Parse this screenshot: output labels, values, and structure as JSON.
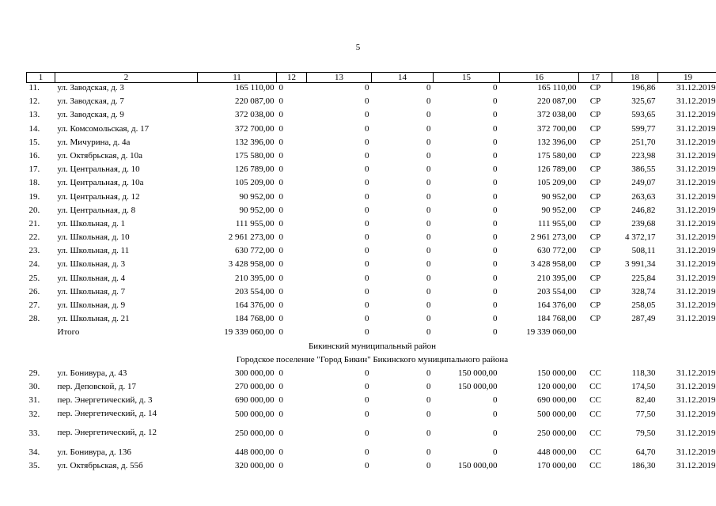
{
  "page_number": "5",
  "header": [
    "1",
    "2",
    "11",
    "12",
    "13",
    "14",
    "15",
    "16",
    "17",
    "18",
    "19"
  ],
  "rows_a": [
    {
      "n": "11.",
      "addr": "ул. Заводская, д. 3",
      "c11": "165 110,00",
      "c12": "0",
      "c13": "0",
      "c14": "0",
      "c15": "0",
      "c16": "165 110,00",
      "c17": "СР",
      "c18": "196,86",
      "c19": "31.12.2019"
    },
    {
      "n": "12.",
      "addr": "ул. Заводская, д. 7",
      "c11": "220 087,00",
      "c12": "0",
      "c13": "0",
      "c14": "0",
      "c15": "0",
      "c16": "220 087,00",
      "c17": "СР",
      "c18": "325,67",
      "c19": "31.12.2019"
    },
    {
      "n": "13.",
      "addr": "ул. Заводская, д. 9",
      "c11": "372 038,00",
      "c12": "0",
      "c13": "0",
      "c14": "0",
      "c15": "0",
      "c16": "372 038,00",
      "c17": "СР",
      "c18": "593,65",
      "c19": "31.12.2019"
    },
    {
      "n": "14.",
      "addr": "ул. Комсомольская, д. 17",
      "c11": "372 700,00",
      "c12": "0",
      "c13": "0",
      "c14": "0",
      "c15": "0",
      "c16": "372 700,00",
      "c17": "СР",
      "c18": "599,77",
      "c19": "31.12.2019"
    },
    {
      "n": "15.",
      "addr": "ул. Мичурина, д. 4а",
      "c11": "132 396,00",
      "c12": "0",
      "c13": "0",
      "c14": "0",
      "c15": "0",
      "c16": "132 396,00",
      "c17": "СР",
      "c18": "251,70",
      "c19": "31.12.2019"
    },
    {
      "n": "16.",
      "addr": "ул. Октябрьская, д. 10а",
      "c11": "175 580,00",
      "c12": "0",
      "c13": "0",
      "c14": "0",
      "c15": "0",
      "c16": "175 580,00",
      "c17": "СР",
      "c18": "223,98",
      "c19": "31.12.2019"
    },
    {
      "n": "17.",
      "addr": "ул. Центральная, д. 10",
      "c11": "126 789,00",
      "c12": "0",
      "c13": "0",
      "c14": "0",
      "c15": "0",
      "c16": "126 789,00",
      "c17": "СР",
      "c18": "386,55",
      "c19": "31.12.2019"
    },
    {
      "n": "18.",
      "addr": "ул. Центральная, д. 10а",
      "c11": "105 209,00",
      "c12": "0",
      "c13": "0",
      "c14": "0",
      "c15": "0",
      "c16": "105 209,00",
      "c17": "СР",
      "c18": "249,07",
      "c19": "31.12.2019"
    },
    {
      "n": "19.",
      "addr": "ул. Центральная, д. 12",
      "c11": "90 952,00",
      "c12": "0",
      "c13": "0",
      "c14": "0",
      "c15": "0",
      "c16": "90 952,00",
      "c17": "СР",
      "c18": "263,63",
      "c19": "31.12.2019"
    },
    {
      "n": "20.",
      "addr": "ул. Центральная, д. 8",
      "c11": "90 952,00",
      "c12": "0",
      "c13": "0",
      "c14": "0",
      "c15": "0",
      "c16": "90 952,00",
      "c17": "СР",
      "c18": "246,82",
      "c19": "31.12.2019"
    },
    {
      "n": "21.",
      "addr": "ул. Школьная, д. 1",
      "c11": "111 955,00",
      "c12": "0",
      "c13": "0",
      "c14": "0",
      "c15": "0",
      "c16": "111 955,00",
      "c17": "СР",
      "c18": "239,68",
      "c19": "31.12.2019"
    },
    {
      "n": "22.",
      "addr": "ул. Школьная, д. 10",
      "c11": "2 961 273,00",
      "c12": "0",
      "c13": "0",
      "c14": "0",
      "c15": "0",
      "c16": "2 961 273,00",
      "c17": "СР",
      "c18": "4 372,17",
      "c19": "31.12.2019"
    },
    {
      "n": "23.",
      "addr": "ул. Школьная, д. 11",
      "c11": "630 772,00",
      "c12": "0",
      "c13": "0",
      "c14": "0",
      "c15": "0",
      "c16": "630 772,00",
      "c17": "СР",
      "c18": "508,11",
      "c19": "31.12.2019"
    },
    {
      "n": "24.",
      "addr": "ул. Школьная, д. 3",
      "c11": "3 428 958,00",
      "c12": "0",
      "c13": "0",
      "c14": "0",
      "c15": "0",
      "c16": "3 428 958,00",
      "c17": "СР",
      "c18": "3 991,34",
      "c19": "31.12.2019"
    },
    {
      "n": "25.",
      "addr": "ул. Школьная, д. 4",
      "c11": "210 395,00",
      "c12": "0",
      "c13": "0",
      "c14": "0",
      "c15": "0",
      "c16": "210 395,00",
      "c17": "СР",
      "c18": "225,84",
      "c19": "31.12.2019"
    },
    {
      "n": "26.",
      "addr": "ул. Школьная, д. 7",
      "c11": "203 554,00",
      "c12": "0",
      "c13": "0",
      "c14": "0",
      "c15": "0",
      "c16": "203 554,00",
      "c17": "СР",
      "c18": "328,74",
      "c19": "31.12.2019"
    },
    {
      "n": "27.",
      "addr": "ул. Школьная, д. 9",
      "c11": "164 376,00",
      "c12": "0",
      "c13": "0",
      "c14": "0",
      "c15": "0",
      "c16": "164 376,00",
      "c17": "СР",
      "c18": "258,05",
      "c19": "31.12.2019"
    },
    {
      "n": "28.",
      "addr": "ул. Школьная, д. 21",
      "c11": "184 768,00",
      "c12": "0",
      "c13": "0",
      "c14": "0",
      "c15": "0",
      "c16": "184 768,00",
      "c17": "СР",
      "c18": "287,49",
      "c19": "31.12.2019"
    }
  ],
  "total": {
    "label": "Итого",
    "c11": "19 339 060,00",
    "c12": "0",
    "c13": "0",
    "c14": "0",
    "c15": "0",
    "c16": "19 339 060,00"
  },
  "section_district": "Бикинский муниципальный район",
  "section_settlement": "Городское поселение \"Город Бикин\" Бикинского муниципального района",
  "rows_b": [
    {
      "n": "29.",
      "addr": "ул. Бонивура, д. 43",
      "c11": "300 000,00",
      "c12": "0",
      "c13": "0",
      "c14": "0",
      "c15": "150 000,00",
      "c16": "150 000,00",
      "c17": "СС",
      "c18": "118,30",
      "c19": "31.12.2019"
    },
    {
      "n": "30.",
      "addr": "пер. Деповской, д. 17",
      "c11": "270 000,00",
      "c12": "0",
      "c13": "0",
      "c14": "0",
      "c15": "150 000,00",
      "c16": "120 000,00",
      "c17": "СС",
      "c18": "174,50",
      "c19": "31.12.2019"
    },
    {
      "n": "31.",
      "addr": "пер. Энергетический, д. 3",
      "c11": "690 000,00",
      "c12": "0",
      "c13": "0",
      "c14": "0",
      "c15": "0",
      "c16": "690 000,00",
      "c17": "СС",
      "c18": "82,40",
      "c19": "31.12.2019"
    },
    {
      "n": "32.",
      "addr": "пер. Энергетический, д. 14",
      "c11": "500 000,00",
      "c12": "0",
      "c13": "0",
      "c14": "0",
      "c15": "0",
      "c16": "500 000,00",
      "c17": "СС",
      "c18": "77,50",
      "c19": "31.12.2019",
      "wrap": true
    },
    {
      "n": "33.",
      "addr": "пер. Энергетический, д. 12",
      "c11": "250 000,00",
      "c12": "0",
      "c13": "0",
      "c14": "0",
      "c15": "0",
      "c16": "250 000,00",
      "c17": "СС",
      "c18": "79,50",
      "c19": "31.12.2019",
      "wrap": true
    },
    {
      "n": "34.",
      "addr": "ул. Бонивура, д. 136",
      "c11": "448 000,00",
      "c12": "0",
      "c13": "0",
      "c14": "0",
      "c15": "0",
      "c16": "448 000,00",
      "c17": "СС",
      "c18": "64,70",
      "c19": "31.12.2019"
    },
    {
      "n": "35.",
      "addr": "ул. Октябрьская, д. 55б",
      "c11": "320 000,00",
      "c12": "0",
      "c13": "0",
      "c14": "0",
      "c15": "150 000,00",
      "c16": "170 000,00",
      "c17": "СС",
      "c18": "186,30",
      "c19": "31.12.2019"
    }
  ]
}
